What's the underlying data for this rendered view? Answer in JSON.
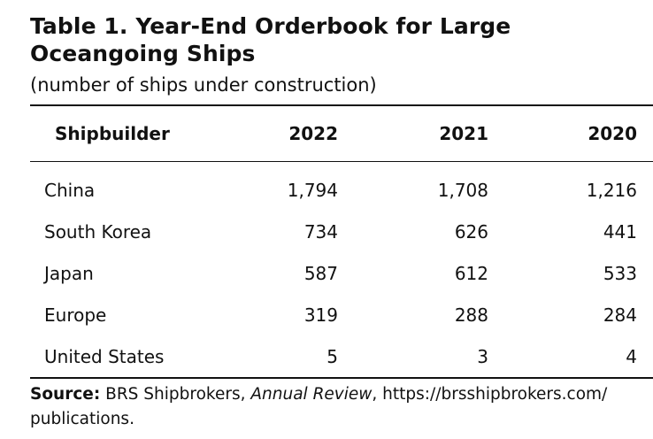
{
  "title": {
    "line1": "Table 1. Year-End Orderbook for Large",
    "line2": "Oceangoing Ships"
  },
  "subtitle": "(number of ships under construction)",
  "table": {
    "columns": [
      "Shipbuilder",
      "2022",
      "2021",
      "2020"
    ],
    "rows": [
      [
        "China",
        "1,794",
        "1,708",
        "1,216"
      ],
      [
        "South Korea",
        "734",
        "626",
        "441"
      ],
      [
        "Japan",
        "587",
        "612",
        "533"
      ],
      [
        "Europe",
        "319",
        "288",
        "284"
      ],
      [
        "United States",
        "5",
        "3",
        "4"
      ]
    ]
  },
  "source": {
    "label": "Source:",
    "text1": "BRS Shipbrokers,",
    "publication": "Annual Review",
    "text2": ", https://brsshipbrokers.com/",
    "text3": "publications."
  }
}
